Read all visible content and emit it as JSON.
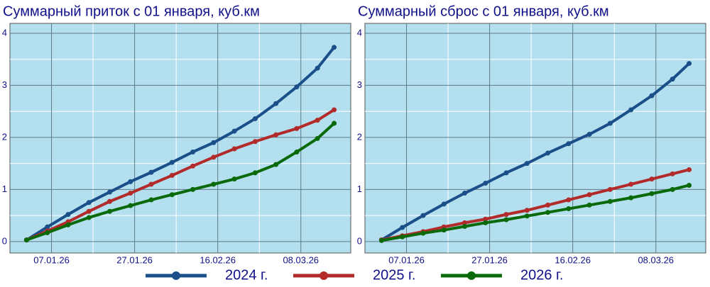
{
  "chart_data": [
    {
      "type": "line",
      "title": "Суммарный приток с 01 января, куб.км",
      "x": [
        "01.01.26",
        "06.01.26",
        "11.01.26",
        "16.01.26",
        "21.01.26",
        "26.01.26",
        "31.01.26",
        "05.02.26",
        "10.02.26",
        "15.02.26",
        "20.02.26",
        "25.02.26",
        "02.03.26",
        "07.03.26",
        "12.03.26",
        "16.03.26"
      ],
      "series": [
        {
          "name": "2024 г.",
          "color": "#1a4f8a",
          "values": [
            0.03,
            0.28,
            0.52,
            0.75,
            0.95,
            1.15,
            1.33,
            1.52,
            1.72,
            1.9,
            2.12,
            2.36,
            2.65,
            2.97,
            3.33,
            3.73
          ]
        },
        {
          "name": "2025 г.",
          "color": "#b22a2a",
          "values": [
            0.03,
            0.2,
            0.38,
            0.58,
            0.77,
            0.93,
            1.1,
            1.27,
            1.45,
            1.62,
            1.78,
            1.92,
            2.05,
            2.17,
            2.33,
            2.53
          ]
        },
        {
          "name": "2026 г.",
          "color": "#0a6a0a",
          "values": [
            0.03,
            0.17,
            0.32,
            0.46,
            0.58,
            0.69,
            0.8,
            0.9,
            1.0,
            1.1,
            1.2,
            1.32,
            1.48,
            1.72,
            1.98,
            2.27
          ]
        }
      ],
      "xlim": [
        "28.12.25",
        "20.03.26"
      ],
      "xticks": [
        "07.01.26",
        "27.01.26",
        "16.02.26",
        "08.03.26"
      ],
      "ylim": [
        -0.22,
        4.19
      ],
      "yticks": [
        0,
        1,
        2,
        3,
        4
      ],
      "grid": true,
      "legend": "bottom"
    },
    {
      "type": "line",
      "title": "Суммарный сброс с 01 января, куб.км",
      "x": [
        "01.01.26",
        "06.01.26",
        "11.01.26",
        "16.01.26",
        "21.01.26",
        "26.01.26",
        "31.01.26",
        "05.02.26",
        "10.02.26",
        "15.02.26",
        "20.02.26",
        "25.02.26",
        "02.03.26",
        "07.03.26",
        "12.03.26",
        "16.03.26"
      ],
      "series": [
        {
          "name": "2024 г.",
          "color": "#1a4f8a",
          "values": [
            0.03,
            0.27,
            0.5,
            0.72,
            0.93,
            1.12,
            1.32,
            1.5,
            1.7,
            1.88,
            2.06,
            2.27,
            2.53,
            2.8,
            3.12,
            3.42
          ]
        },
        {
          "name": "2025 г.",
          "color": "#b22a2a",
          "values": [
            0.03,
            0.11,
            0.19,
            0.28,
            0.36,
            0.43,
            0.52,
            0.6,
            0.7,
            0.8,
            0.9,
            1.0,
            1.1,
            1.2,
            1.3,
            1.38
          ]
        },
        {
          "name": "2026 г.",
          "color": "#0a6a0a",
          "values": [
            0.02,
            0.09,
            0.16,
            0.22,
            0.29,
            0.36,
            0.42,
            0.49,
            0.56,
            0.63,
            0.7,
            0.77,
            0.84,
            0.92,
            1.0,
            1.08
          ]
        }
      ],
      "xlim": [
        "28.12.25",
        "20.03.26"
      ],
      "xticks": [
        "07.01.26",
        "27.01.26",
        "16.02.26",
        "08.03.26"
      ],
      "ylim": [
        -0.22,
        4.19
      ],
      "yticks": [
        0,
        1,
        2,
        3,
        4
      ],
      "grid": true
    }
  ]
}
